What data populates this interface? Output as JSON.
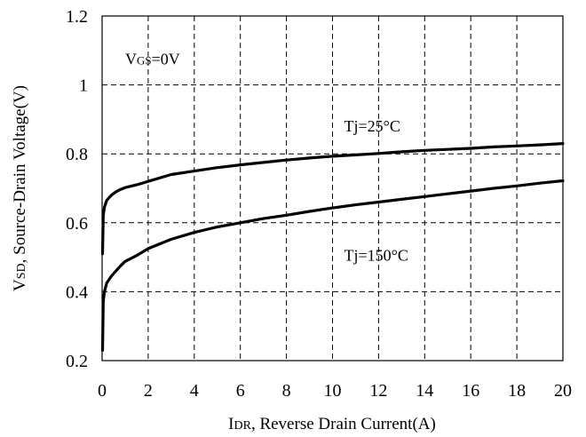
{
  "chart_data": {
    "type": "line",
    "xlabel": "IDR, Reverse Drain Current(A)",
    "xlabel_parts": {
      "main": "I",
      "sub": "DR",
      "rest": ", Reverse Drain Current(A)"
    },
    "ylabel": "VSD, Source-Drain Voltage(V)",
    "ylabel_parts": {
      "main": "V",
      "sub": "SD",
      "rest": ", Source-Drain Voltage(V)"
    },
    "xlim": [
      0,
      20
    ],
    "ylim": [
      0.2,
      1.2
    ],
    "x_ticks": [
      0,
      2,
      4,
      6,
      8,
      10,
      12,
      14,
      16,
      18,
      20
    ],
    "x_tick_labels": [
      "0",
      "2",
      "4",
      "6",
      "8",
      "10",
      "12",
      "14",
      "16",
      "18",
      "20"
    ],
    "y_ticks": [
      0.2,
      0.4,
      0.6,
      0.8,
      1.0,
      1.2
    ],
    "y_tick_labels": [
      "0.2",
      "0.4",
      "0.6",
      "0.8",
      "1",
      "1.2"
    ],
    "grid": true,
    "annotations": [
      {
        "id": "vgs",
        "text": "VGS=0V",
        "parts": {
          "main": "V",
          "sub": "GS",
          "rest": "=0V"
        },
        "x": 1.0,
        "y": 1.06
      },
      {
        "id": "tj25",
        "text": "Tj=25°C",
        "x": 10.5,
        "y": 0.865
      },
      {
        "id": "tj150",
        "text": "Tj=150°C",
        "x": 10.5,
        "y": 0.49
      }
    ],
    "series": [
      {
        "id": "tj25",
        "x": [
          0.02,
          0.05,
          0.1,
          0.2,
          0.4,
          0.6,
          0.8,
          1.0,
          1.5,
          2.0,
          3.0,
          4.0,
          5.0,
          6.0,
          7.0,
          8.0,
          9.0,
          10.0,
          11.0,
          12.0,
          13.0,
          14.0,
          15.0,
          16.0,
          17.0,
          18.0,
          19.0,
          20.0
        ],
        "y": [
          0.51,
          0.62,
          0.645,
          0.665,
          0.68,
          0.69,
          0.697,
          0.702,
          0.71,
          0.72,
          0.74,
          0.75,
          0.76,
          0.768,
          0.775,
          0.782,
          0.788,
          0.793,
          0.797,
          0.801,
          0.806,
          0.81,
          0.813,
          0.816,
          0.82,
          0.823,
          0.826,
          0.83
        ]
      },
      {
        "id": "tj150",
        "x": [
          0.02,
          0.05,
          0.1,
          0.2,
          0.4,
          0.6,
          0.8,
          1.0,
          1.5,
          2.0,
          3.0,
          4.0,
          5.0,
          6.0,
          7.0,
          8.0,
          9.0,
          10.0,
          11.0,
          12.0,
          13.0,
          14.0,
          15.0,
          16.0,
          17.0,
          18.0,
          19.0,
          20.0
        ],
        "y": [
          0.23,
          0.37,
          0.4,
          0.425,
          0.445,
          0.46,
          0.475,
          0.488,
          0.505,
          0.525,
          0.552,
          0.572,
          0.588,
          0.6,
          0.612,
          0.622,
          0.633,
          0.643,
          0.652,
          0.66,
          0.668,
          0.676,
          0.684,
          0.692,
          0.7,
          0.707,
          0.715,
          0.722
        ]
      }
    ]
  }
}
